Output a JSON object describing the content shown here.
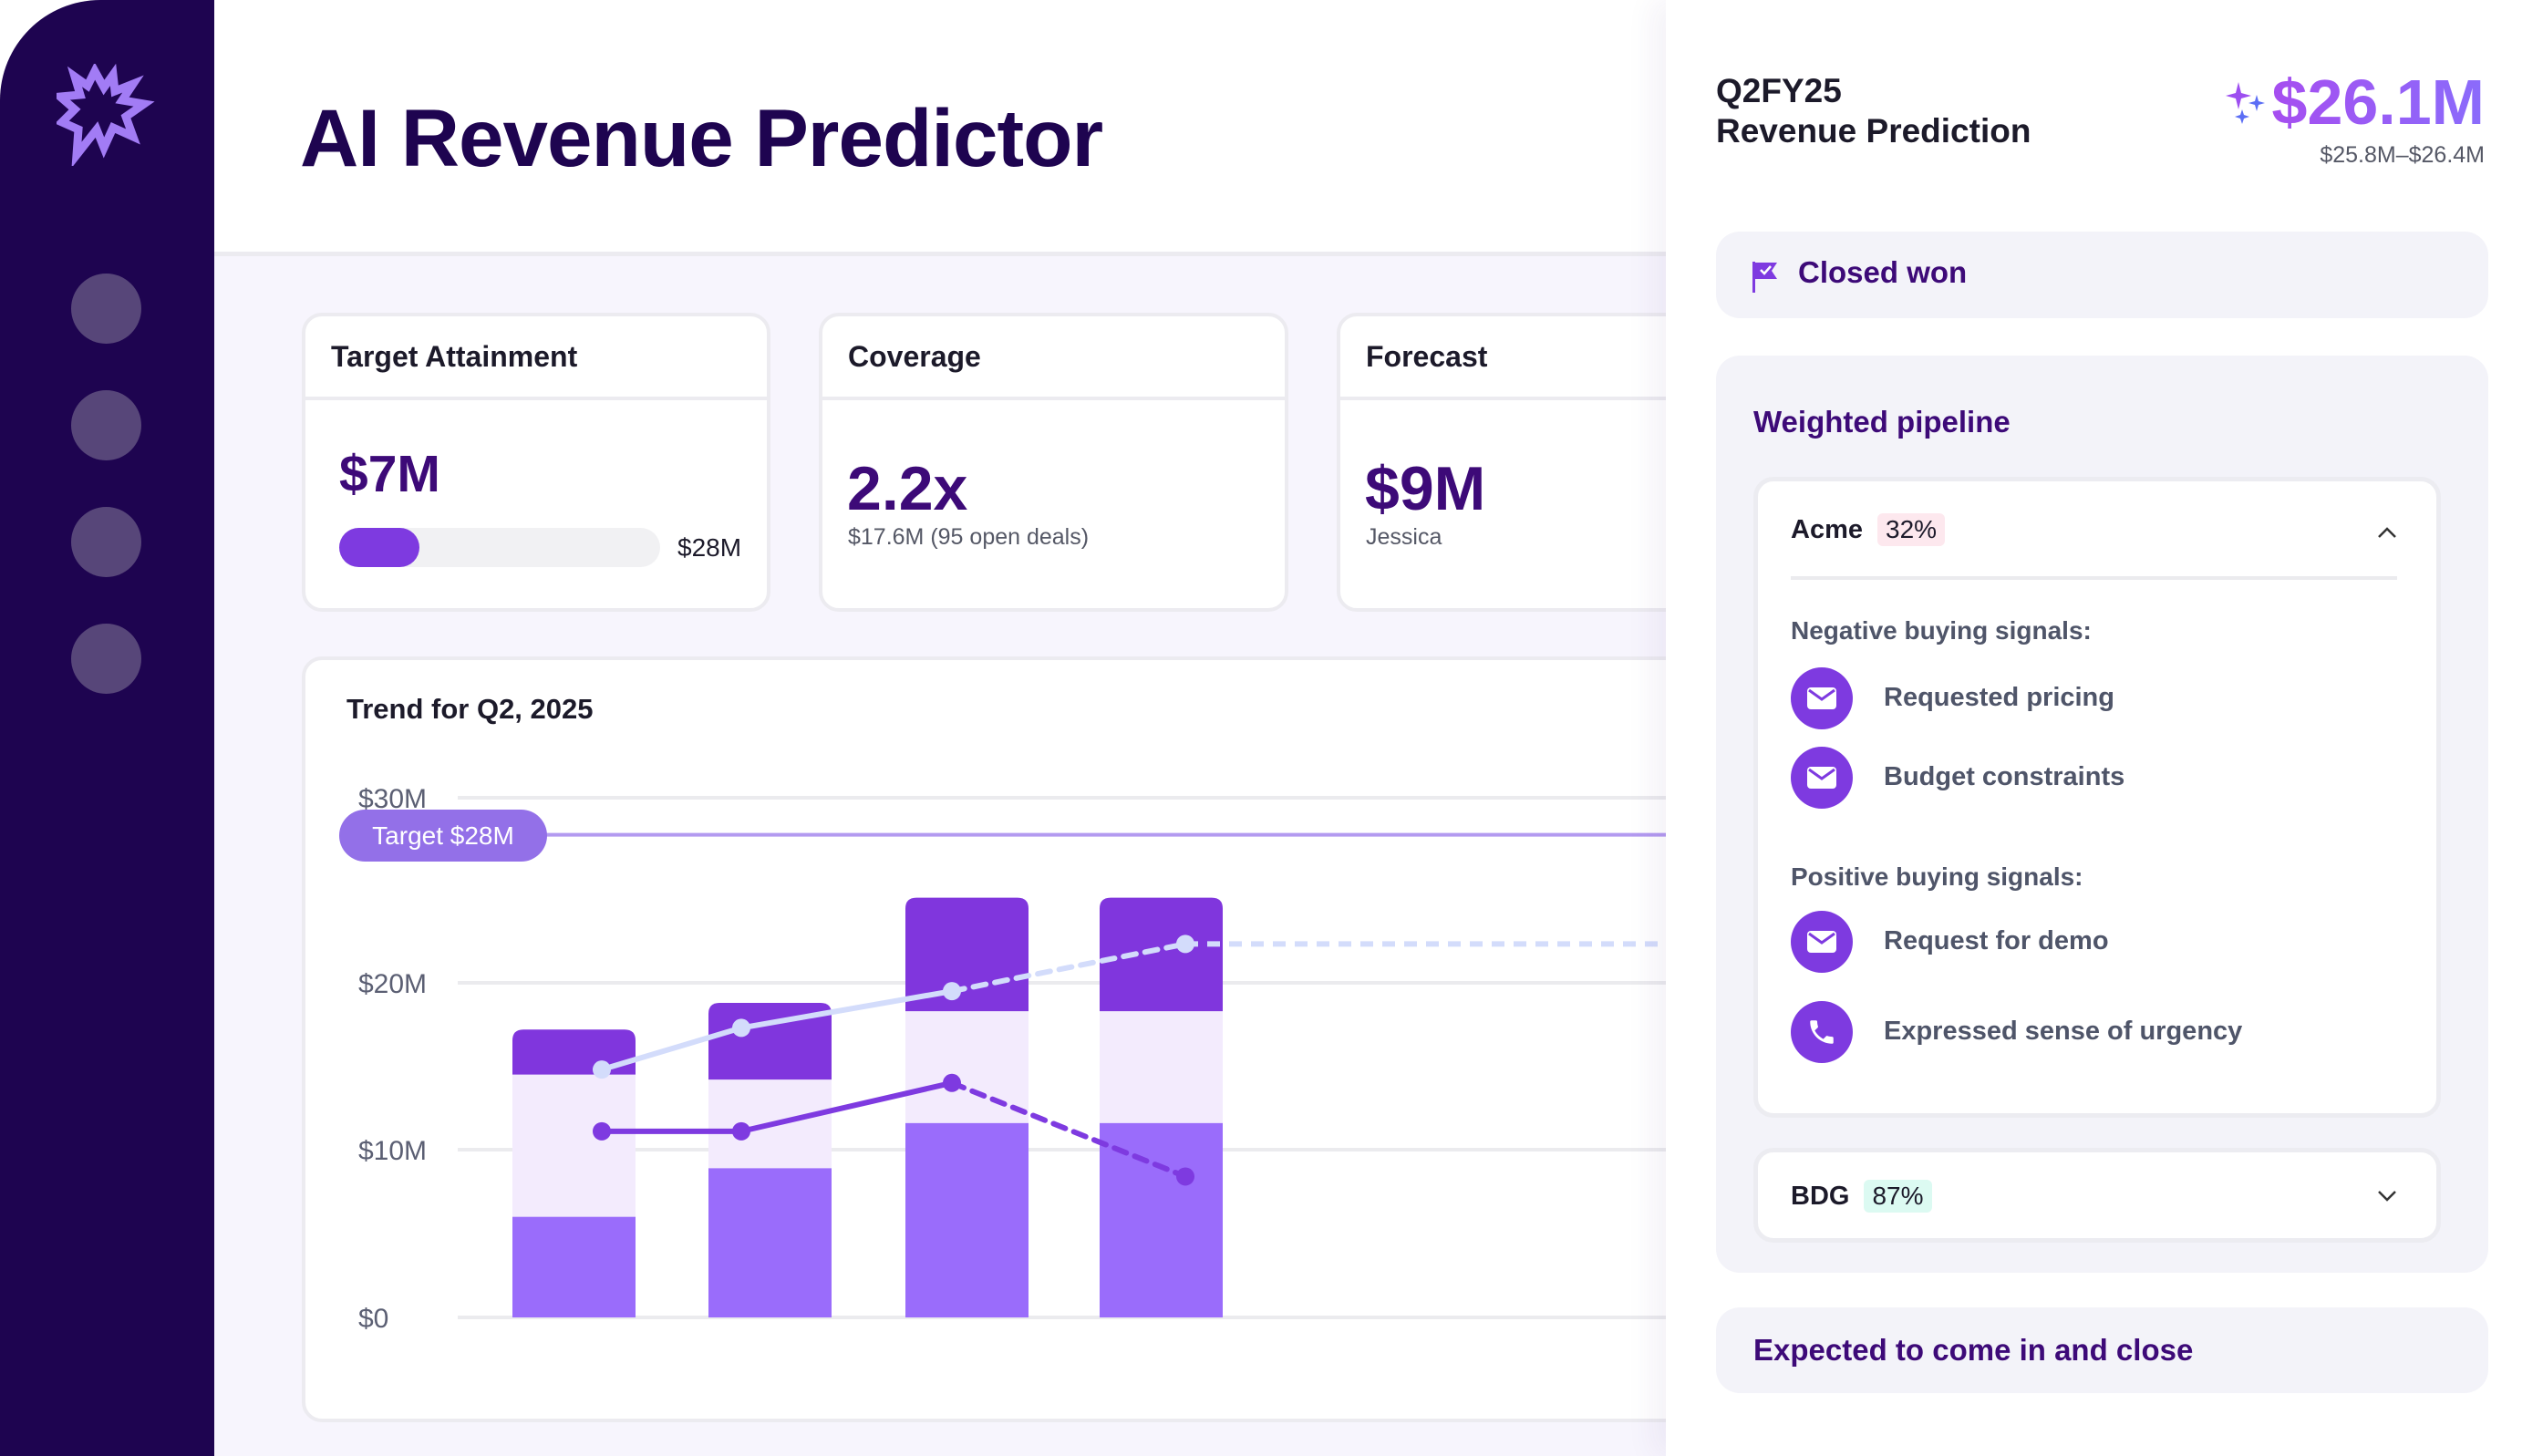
{
  "app": {
    "title": "AI Revenue Predictor"
  },
  "sidebar": {
    "logo": "starburst-logo",
    "items": [
      "nav-1",
      "nav-2",
      "nav-3",
      "nav-4"
    ]
  },
  "kpis": {
    "target_attainment": {
      "title": "Target Attainment",
      "value": "$7M",
      "target": "$28M",
      "progress": 0.25
    },
    "coverage": {
      "title": "Coverage",
      "value": "2.2x",
      "sub": "$17.6M (95 open deals)"
    },
    "forecast": {
      "title": "Forecast",
      "value": "$9M",
      "sub": "Jessica"
    }
  },
  "trend": {
    "title": "Trend for Q2, 2025",
    "target_label": "Target $28M"
  },
  "chart_data": {
    "type": "bar",
    "title": "Trend for Q2, 2025",
    "stacked": true,
    "y_ticks": [
      "$30M",
      "$20M",
      "$10M",
      "$0"
    ],
    "y_tick_values": [
      30,
      20,
      10,
      0
    ],
    "ylim": [
      0,
      30
    ],
    "grid": true,
    "target": {
      "label": "Target $28M",
      "value": 28
    },
    "series": [
      {
        "values": [
          6.0,
          8.9,
          11.6,
          11.6
        ],
        "color": "#9a6cfb"
      },
      {
        "values": [
          8.5,
          5.3,
          6.7,
          6.7
        ],
        "color": "#f3ebfd"
      },
      {
        "values": [
          2.7,
          4.6,
          6.3,
          6.3
        ],
        "color": "#8036dd"
      }
    ],
    "lines": [
      {
        "values": [
          14.8,
          17.3,
          19.5,
          22.1
        ],
        "solid_until": 2,
        "extends_right": true,
        "color": "#d3dcfb"
      },
      {
        "values": [
          11.1,
          11.1,
          14.0,
          8.4
        ],
        "solid_until": 2,
        "extends_right": false,
        "color": "#7e3ae0"
      }
    ]
  },
  "panel": {
    "period": "Q2FY25",
    "heading": "Revenue Prediction",
    "prediction": "$26.1M",
    "range": "$25.8M–$26.4M",
    "closed_won": "Closed won",
    "weighted_pipeline": "Weighted pipeline",
    "accounts": [
      {
        "name": "Acme",
        "probability": "32%",
        "badge_color": "#fde8ee",
        "expanded": true,
        "negative_label": "Negative buying signals:",
        "negative": [
          {
            "icon": "mail-icon",
            "text": "Requested pricing"
          },
          {
            "icon": "mail-icon",
            "text": "Budget constraints"
          }
        ],
        "positive_label": "Positive buying signals:",
        "positive": [
          {
            "icon": "mail-icon",
            "text": "Request for demo"
          },
          {
            "icon": "phone-icon",
            "text": "Expressed sense of urgency"
          }
        ]
      },
      {
        "name": "BDG",
        "probability": "87%",
        "badge_color": "#dcfaf2",
        "expanded": false
      }
    ],
    "expected": "Expected to come in and close"
  },
  "colors": {
    "sidebar": "#1e0450",
    "brand": "#7e3ae0",
    "heading": "#3d0a78"
  }
}
